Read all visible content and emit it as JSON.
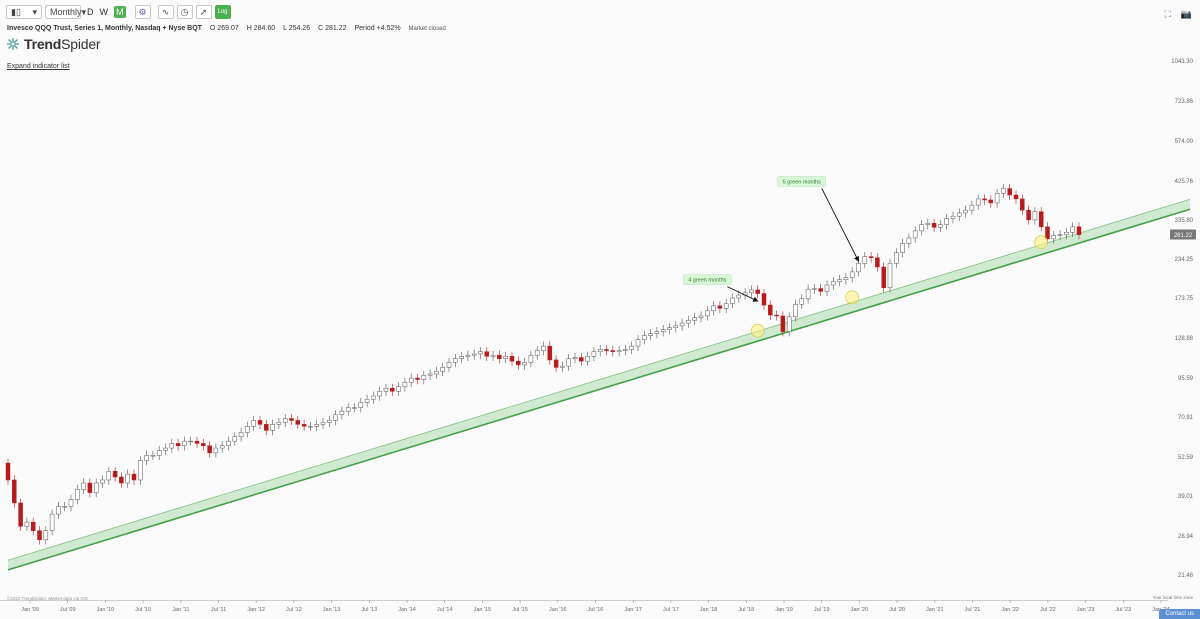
{
  "toolbar": {
    "chart_type_icon": "candles-icon",
    "interval": "Monthly",
    "quick_intervals": [
      "D",
      "W",
      "M"
    ],
    "active_interval": "M",
    "icons": [
      "gear-icon",
      "indicator-icon",
      "clock-icon",
      "drawing-icon",
      "log-icon"
    ],
    "log_label": "Log"
  },
  "legend": {
    "name": "Invesco QQQ Trust, Series 1, Monthly, Nasdaq + Nyse BQT",
    "open_label": "O",
    "open": "269.07",
    "high_label": "H",
    "high": "284.60",
    "low_label": "L",
    "low": "254.26",
    "close_label": "C",
    "close": "281.22",
    "period_label": "Period",
    "period": "+4.52%",
    "status": "Market closed"
  },
  "brand": {
    "bold": "Trend",
    "light": "Spider"
  },
  "expand_link": "Expand indicator list",
  "copyright": "©2022 TrendSpider. Market data via ICE",
  "timezone": "Your local time zone",
  "contact": "Contact us",
  "colors": {
    "up": "#ffffff",
    "down": "#b71c1c",
    "channel_fill": "#c8e6c9",
    "channel_line": "#43a047",
    "highlight": "#fff176"
  },
  "chart_data": {
    "type": "candlestick",
    "scale": "log",
    "y_ticks": [
      "1043.30",
      "723.86",
      "574.00",
      "425.76",
      "335.80",
      "234.25",
      "173.75",
      "128.88",
      "95.59",
      "70.91",
      "52.59",
      "39.01",
      "28.94",
      "21.46"
    ],
    "last_price_label": "281.22",
    "x_ticks": [
      "Jan '09",
      "Jul '09",
      "Jan '10",
      "Jul '10",
      "Jan '11",
      "Jul '11",
      "Jan '12",
      "Jul '12",
      "Jan '13",
      "Jul '13",
      "Jan '14",
      "Jul '14",
      "Jan '15",
      "Jul '15",
      "Jan '16",
      "Jul '16",
      "Jan '17",
      "Jul '17",
      "Jan '18",
      "Jul '18",
      "Jan '19",
      "Jul '19",
      "Jan '20",
      "Jul '20",
      "Jan '21",
      "Jul '21",
      "Jan '22",
      "Jul '22",
      "Jan '23",
      "Jul '23",
      "Jan '24"
    ],
    "closes": [
      44,
      37,
      31,
      32,
      30,
      28,
      30,
      34,
      36,
      36,
      38,
      41,
      43,
      40,
      43,
      44,
      47,
      45,
      43,
      46,
      44,
      51,
      53,
      53,
      55,
      56,
      58,
      57,
      59,
      59,
      58,
      57,
      54,
      56,
      57,
      59,
      61,
      63,
      66,
      69,
      67,
      64,
      67,
      68,
      70,
      69,
      67,
      66,
      66,
      67,
      68,
      69,
      72,
      74,
      76,
      76,
      79,
      81,
      83,
      86,
      88,
      86,
      89,
      92,
      95,
      94,
      97,
      98,
      100,
      103,
      107,
      110,
      112,
      113,
      114,
      116,
      112,
      113,
      110,
      112,
      108,
      105,
      107,
      113,
      117,
      121,
      109,
      103,
      104,
      110,
      111,
      108,
      112,
      116,
      118,
      117,
      116,
      117,
      118,
      121,
      127,
      131,
      133,
      135,
      137,
      139,
      141,
      144,
      147,
      150,
      152,
      158,
      164,
      161,
      167,
      174,
      178,
      181,
      185,
      180,
      165,
      153,
      152,
      135,
      151,
      166,
      173,
      186,
      187,
      183,
      192,
      197,
      200,
      203,
      212,
      226,
      238,
      236,
      220,
      188,
      226,
      245,
      263,
      274,
      289,
      303,
      306,
      297,
      303,
      317,
      323,
      331,
      338,
      351,
      368,
      365,
      357,
      384,
      398,
      379,
      368,
      338,
      314,
      334,
      298,
      272,
      279,
      281,
      286,
      298,
      281
    ],
    "channel": {
      "lower": [
        [
          0,
          22.3
        ],
        [
          168,
          256.0
        ]
      ],
      "upper": [
        [
          0,
          24.0
        ],
        [
          168,
          276.0
        ]
      ]
    },
    "annotations": [
      {
        "text": "4 green months",
        "label_x": 111,
        "label_y": 200,
        "arrow_to_x": 119,
        "arrow_to_y": 170
      },
      {
        "text": "5 green months",
        "label_x": 126,
        "label_y": 420,
        "arrow_to_x": 135,
        "arrow_to_y": 230
      }
    ],
    "highlights": [
      [
        119,
        136
      ],
      [
        134,
        175
      ],
      [
        164,
        265
      ]
    ],
    "grid": false
  }
}
